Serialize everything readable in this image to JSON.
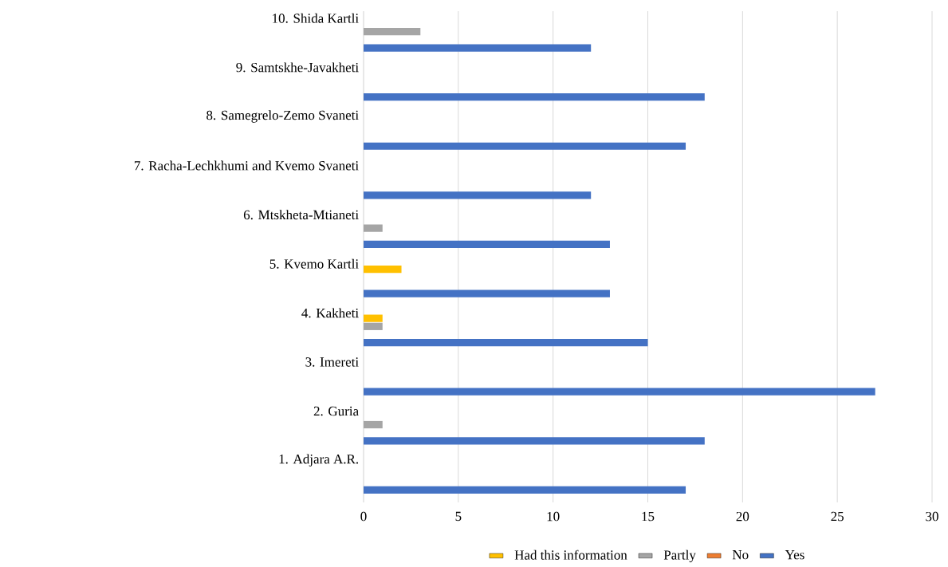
{
  "chart_data": {
    "type": "bar",
    "orientation": "horizontal",
    "categories": [
      "10. Shida Kartli",
      "9. Samtskhe-Javakheti",
      "8. Samegrelo-Zemo Svaneti",
      "7. Racha-Lechkhumi and Kvemo Svaneti",
      "6. Mtskheta-Mtianeti",
      "5. Kvemo Kartli",
      "4. Kakheti",
      "3. Imereti",
      "2. Guria",
      "1. Adjara A.R."
    ],
    "series": [
      {
        "name": "Had this information",
        "color": "#ffc000",
        "values": [
          0,
          0,
          0,
          0,
          0,
          2,
          1,
          0,
          0,
          0
        ]
      },
      {
        "name": "Partly",
        "color": "#a5a5a5",
        "values": [
          3,
          0,
          0,
          0,
          1,
          0,
          1,
          0,
          1,
          0
        ]
      },
      {
        "name": "No",
        "color": "#ed7d31",
        "values": [
          0,
          0,
          0,
          0,
          0,
          0,
          0,
          0,
          0,
          0
        ]
      },
      {
        "name": "Yes",
        "color": "#4472c4",
        "values": [
          12,
          18,
          17,
          12,
          13,
          13,
          15,
          27,
          18,
          17
        ]
      }
    ],
    "xlim": [
      0,
      30
    ],
    "xticks": [
      0,
      5,
      10,
      15,
      20,
      25,
      30
    ],
    "grid": "x",
    "legend": "bottom"
  }
}
